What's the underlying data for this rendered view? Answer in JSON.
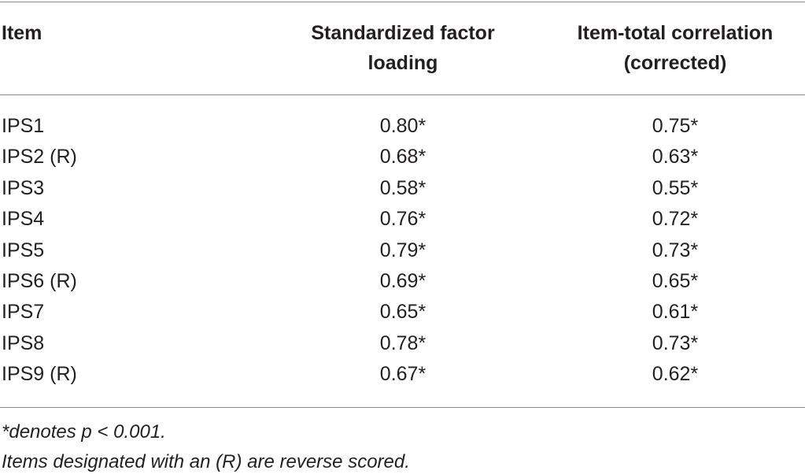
{
  "table": {
    "header": [
      [
        "Item"
      ],
      [
        "Standardized factor",
        "loading"
      ],
      [
        "Item-total correlation",
        "(corrected)"
      ]
    ],
    "rows": [
      [
        "IPS1",
        "0.80*",
        "0.75*"
      ],
      [
        "IPS2 (R)",
        "0.68*",
        "0.63*"
      ],
      [
        "IPS3",
        "0.58*",
        "0.55*"
      ],
      [
        "IPS4",
        "0.76*",
        "0.72*"
      ],
      [
        "IPS5",
        "0.79*",
        "0.73*"
      ],
      [
        "IPS6 (R)",
        "0.69*",
        "0.65*"
      ],
      [
        "IPS7",
        "0.65*",
        "0.61*"
      ],
      [
        "IPS8",
        "0.78*",
        "0.73*"
      ],
      [
        "IPS9 (R)",
        "0.67*",
        "0.62*"
      ]
    ]
  },
  "footnotes": [
    "*denotes p < 0.001.",
    "Items designated with an (R) are reverse scored."
  ]
}
